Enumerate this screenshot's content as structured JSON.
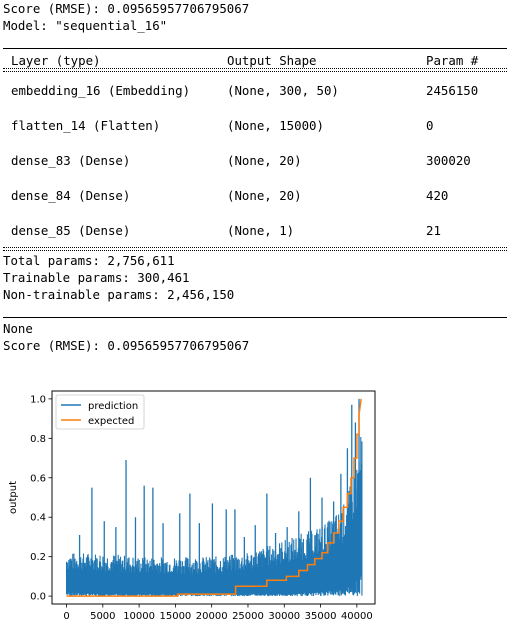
{
  "cell": {
    "score_line_1": "Score (RMSE): 0.09565957706795067",
    "model_line": "Model: \"sequential_16\"",
    "headers": {
      "layer": "Layer (type)",
      "output": "Output Shape",
      "param": "Param #"
    },
    "layers": [
      {
        "layer": "embedding_16 (Embedding)",
        "output": "(None, 300, 50)",
        "param": "2456150"
      },
      {
        "layer": "flatten_14 (Flatten)",
        "output": "(None, 15000)",
        "param": "0"
      },
      {
        "layer": "dense_83 (Dense)",
        "output": "(None, 20)",
        "param": "300020"
      },
      {
        "layer": "dense_84 (Dense)",
        "output": "(None, 20)",
        "param": "420"
      },
      {
        "layer": "dense_85 (Dense)",
        "output": "(None, 1)",
        "param": "21"
      }
    ],
    "total_params": "Total params: 2,756,611",
    "trainable_params": "Trainable params: 300,461",
    "non_trainable_params": "Non-trainable params: 2,456,150",
    "none_line": "None",
    "score_line_2": "Score (RMSE): 0.09565957706795067"
  },
  "colors": {
    "prediction": "#1f77b4",
    "expected": "#ff7f0e"
  },
  "chart_data": {
    "type": "line",
    "title": "",
    "xlabel": "",
    "ylabel": "output",
    "xlim": [
      -2000,
      42500
    ],
    "ylim": [
      -0.04,
      1.04
    ],
    "xticks": [
      0,
      5000,
      10000,
      15000,
      20000,
      25000,
      30000,
      35000,
      40000
    ],
    "yticks": [
      0.0,
      0.2,
      0.4,
      0.6,
      0.8,
      1.0
    ],
    "ytick_labels": [
      "0.0",
      "0.2",
      "0.4",
      "0.6",
      "0.8",
      "1.0"
    ],
    "grid": false,
    "legend": "top-left",
    "series": [
      {
        "name": "prediction",
        "note": "dense noisy band; typical upper envelope with occasional spikes",
        "envelope_x": [
          0,
          5000,
          10000,
          15000,
          20000,
          25000,
          28000,
          31000,
          34000,
          36000,
          38000,
          39000,
          40000,
          40700
        ],
        "envelope_top": [
          0.22,
          0.22,
          0.2,
          0.2,
          0.2,
          0.22,
          0.26,
          0.3,
          0.34,
          0.38,
          0.45,
          0.55,
          0.7,
          0.85
        ],
        "envelope_bottom": [
          0.02,
          0.01,
          0.01,
          0.01,
          0.01,
          0.01,
          0.01,
          0.01,
          0.02,
          0.03,
          0.04,
          0.06,
          0.08,
          0.15
        ],
        "spikes": [
          [
            1800,
            0.31
          ],
          [
            3500,
            0.55
          ],
          [
            5200,
            0.38
          ],
          [
            6800,
            0.35
          ],
          [
            8200,
            0.69
          ],
          [
            9500,
            0.4
          ],
          [
            10700,
            0.56
          ],
          [
            11900,
            0.55
          ],
          [
            13300,
            0.37
          ],
          [
            15600,
            0.42
          ],
          [
            17000,
            0.52
          ],
          [
            18300,
            0.37
          ],
          [
            20100,
            0.47
          ],
          [
            22000,
            0.44
          ],
          [
            23200,
            0.44
          ],
          [
            24500,
            0.3
          ],
          [
            26000,
            0.36
          ],
          [
            27600,
            0.52
          ],
          [
            28800,
            0.32
          ],
          [
            30400,
            0.35
          ],
          [
            32000,
            0.43
          ],
          [
            33600,
            0.6
          ],
          [
            35200,
            0.5
          ],
          [
            36800,
            0.48
          ],
          [
            37800,
            0.62
          ],
          [
            38700,
            0.75
          ],
          [
            39300,
            0.97
          ],
          [
            39800,
            0.88
          ],
          [
            40300,
            1.0
          ]
        ]
      },
      {
        "name": "expected",
        "x": [
          0,
          15300,
          15300,
          23300,
          23300,
          27600,
          27600,
          30300,
          30300,
          32000,
          32000,
          33200,
          33200,
          34200,
          34200,
          35200,
          35200,
          36000,
          36000,
          36800,
          36800,
          37500,
          37500,
          38100,
          38100,
          38700,
          38700,
          39200,
          39200,
          39600,
          39600,
          40000,
          40000,
          40300,
          40300,
          40600
        ],
        "y": [
          0.0,
          0.0,
          0.01,
          0.01,
          0.05,
          0.05,
          0.08,
          0.08,
          0.1,
          0.1,
          0.13,
          0.13,
          0.16,
          0.16,
          0.19,
          0.19,
          0.22,
          0.22,
          0.27,
          0.27,
          0.32,
          0.32,
          0.38,
          0.38,
          0.45,
          0.45,
          0.52,
          0.52,
          0.6,
          0.6,
          0.7,
          0.7,
          0.82,
          0.82,
          0.92,
          1.0
        ]
      }
    ]
  }
}
